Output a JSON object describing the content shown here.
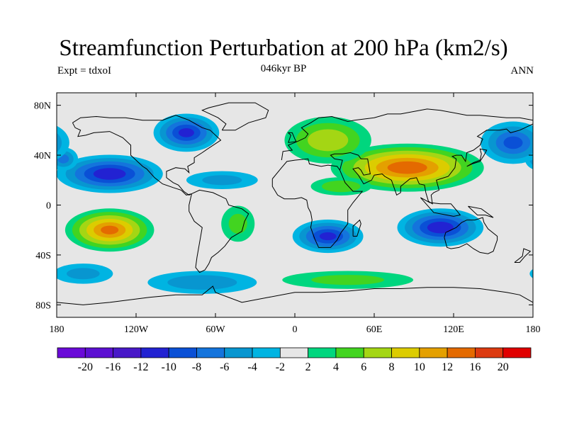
{
  "title": "Streamfunction Perturbation at 200 hPa (km2/s)",
  "experiment": "Expt = tdxoI",
  "period": "046kyr BP",
  "season": "ANN",
  "map": {
    "lon_range": [
      -180,
      180
    ],
    "lat_range": [
      -90,
      90
    ],
    "x_ticks": [
      {
        "lon": -180,
        "label": "180"
      },
      {
        "lon": -120,
        "label": "120W"
      },
      {
        "lon": -60,
        "label": "60W"
      },
      {
        "lon": 0,
        "label": "0"
      },
      {
        "lon": 60,
        "label": "60E"
      },
      {
        "lon": 120,
        "label": "120E"
      },
      {
        "lon": 180,
        "label": "180"
      }
    ],
    "y_ticks": [
      {
        "lat": 80,
        "label": "80N"
      },
      {
        "lat": 40,
        "label": "40N"
      },
      {
        "lat": 0,
        "label": "0"
      },
      {
        "lat": -40,
        "label": "40S"
      },
      {
        "lat": -80,
        "label": "80S"
      }
    ]
  },
  "colorbar": {
    "colors": [
      "#6a0ad8",
      "#5c10d2",
      "#4818c8",
      "#2222d2",
      "#0a50d6",
      "#1474dc",
      "#0896d0",
      "#00b4e2",
      "#e6e6e6",
      "#00d67e",
      "#42d420",
      "#a4d614",
      "#dccc00",
      "#e4a000",
      "#e46a00",
      "#dc3a10",
      "#e00000"
    ],
    "labels": [
      "-20",
      "-16",
      "-12",
      "-10",
      "-8",
      "-6",
      "-4",
      "-2",
      "2",
      "4",
      "6",
      "8",
      "10",
      "12",
      "16",
      "20"
    ]
  },
  "blobs": [
    {
      "name": "n-pacific-low",
      "lon": -140,
      "lat": 25,
      "rx": 42,
      "ry": 16,
      "peak": -11
    },
    {
      "name": "e-pacific-low",
      "lon": -175,
      "lat": 37,
      "rx": 12,
      "ry": 10,
      "peak": -6
    },
    {
      "name": "canada-low",
      "lon": -82,
      "lat": 58,
      "rx": 26,
      "ry": 16,
      "peak": -10
    },
    {
      "name": "atlantic-low",
      "lon": -55,
      "lat": 20,
      "rx": 30,
      "ry": 8,
      "peak": -4
    },
    {
      "name": "nw-pacific-low",
      "lon": 165,
      "lat": 50,
      "rx": 26,
      "ry": 18,
      "peak": -8
    },
    {
      "name": "asia-high",
      "lon": 85,
      "lat": 30,
      "rx": 60,
      "ry": 20,
      "peak": 13
    },
    {
      "name": "europe-high",
      "lon": 25,
      "lat": 52,
      "rx": 35,
      "ry": 20,
      "peak": 7
    },
    {
      "name": "africa-high",
      "lon": 35,
      "lat": 15,
      "rx": 25,
      "ry": 8,
      "peak": 5
    },
    {
      "name": "s-pacific-high",
      "lon": -140,
      "lat": -20,
      "rx": 35,
      "ry": 18,
      "peak": 12
    },
    {
      "name": "samerica-high",
      "lon": -43,
      "lat": -15,
      "rx": 14,
      "ry": 16,
      "peak": 4
    },
    {
      "name": "s-africa-low",
      "lon": 25,
      "lat": -25,
      "rx": 28,
      "ry": 14,
      "peak": -10
    },
    {
      "name": "s-indian-low",
      "lon": 110,
      "lat": -18,
      "rx": 34,
      "ry": 16,
      "peak": -11
    },
    {
      "name": "southern-ocean-high",
      "lon": 40,
      "lat": -60,
      "rx": 55,
      "ry": 8,
      "peak": 4
    },
    {
      "name": "s-atlantic-low",
      "lon": -70,
      "lat": -62,
      "rx": 45,
      "ry": 10,
      "peak": -5
    },
    {
      "name": "s-pacific-low",
      "lon": -160,
      "lat": -55,
      "rx": 25,
      "ry": 9,
      "peak": -4
    }
  ]
}
